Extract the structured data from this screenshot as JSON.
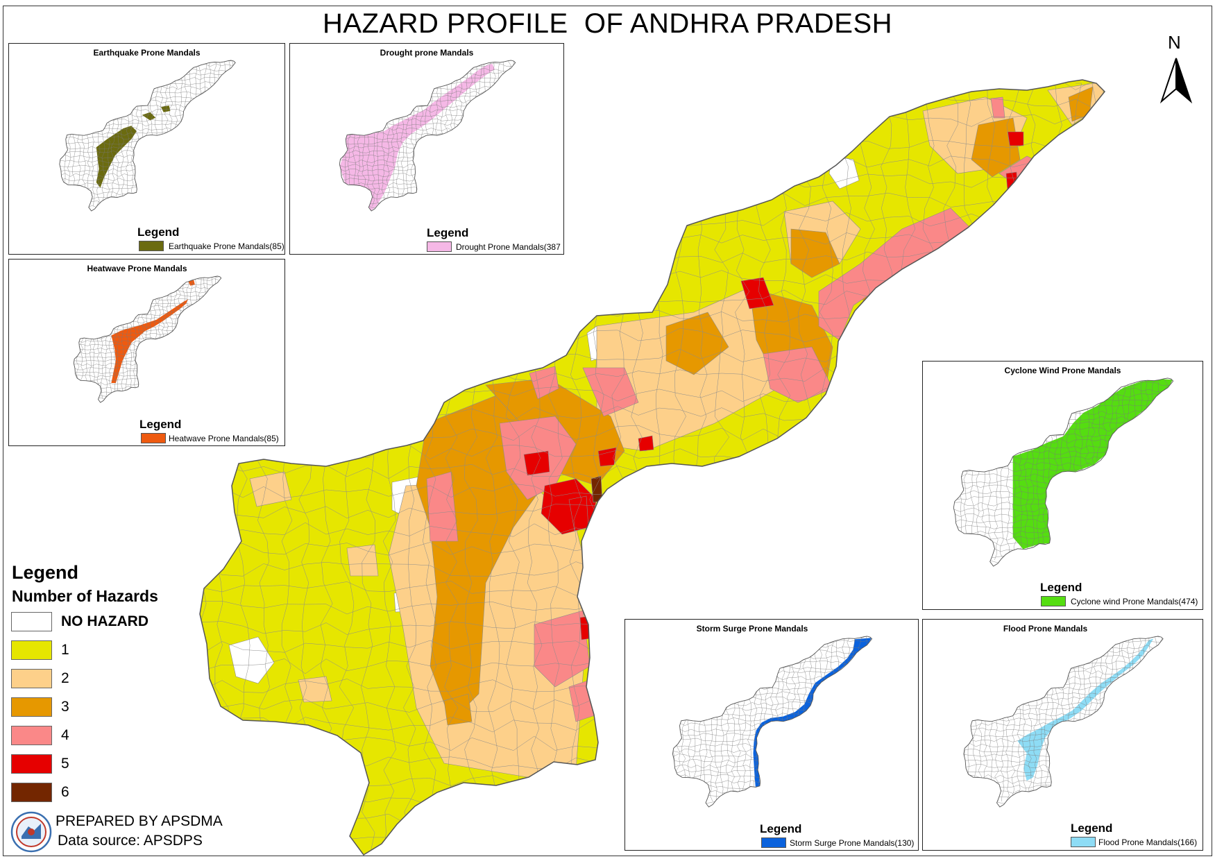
{
  "title": "HAZARD PROFILE  OF ANDHRA PRADESH",
  "north_label": "N",
  "colors": {
    "no_hazard": "#ffffff",
    "h1": "#e6e600",
    "h2": "#fdd08a",
    "h3": "#e69800",
    "h4": "#fa8888",
    "h5": "#e60000",
    "h6": "#732600",
    "boundary": "#8c8c8c",
    "earthquake": "#6b6b10",
    "drought": "#f5b8e6",
    "heatwave": "#ee5a10",
    "cyclone": "#55dd11",
    "storm_surge": "#0a62dd",
    "flood": "#8edcf5"
  },
  "legend": {
    "title": "Legend",
    "subtitle": "Number of Hazards",
    "items": [
      {
        "label": "NO HAZARD",
        "color": "#ffffff",
        "bold": true
      },
      {
        "label": "1",
        "color": "#e6e600"
      },
      {
        "label": "2",
        "color": "#fdd08a"
      },
      {
        "label": "3",
        "color": "#e69800"
      },
      {
        "label": "4",
        "color": "#fa8888"
      },
      {
        "label": "5",
        "color": "#e60000"
      },
      {
        "label": "6",
        "color": "#732600"
      }
    ]
  },
  "insets": [
    {
      "key": "earthquake",
      "title": "Earthquake Prone Mandals",
      "legend_title": "Legend",
      "legend_label": "Earthquake Prone Mandals(85)",
      "color": "#6b6b10"
    },
    {
      "key": "drought",
      "title": "Drought prone Mandals",
      "legend_title": "Legend",
      "legend_label": "Drought Prone Mandals(387",
      "color": "#f5b8e6"
    },
    {
      "key": "heatwave",
      "title": "Heatwave Prone Mandals",
      "legend_title": "Legend",
      "legend_label": "Heatwave Prone Mandals(85)",
      "color": "#ee5a10"
    },
    {
      "key": "cyclone",
      "title": "Cyclone Wind Prone Mandals",
      "legend_title": "Legend",
      "legend_label": "Cyclone wind Prone Mandals(474)",
      "color": "#55dd11"
    },
    {
      "key": "storm_surge",
      "title": "Storm Surge Prone Mandals",
      "legend_title": "Legend",
      "legend_label": "Storm Surge Prone Mandals(130)",
      "color": "#0a62dd"
    },
    {
      "key": "flood",
      "title": "Flood Prone Mandals",
      "legend_title": "Legend",
      "legend_label": "Flood Prone Mandals(166)",
      "color": "#8edcf5"
    }
  ],
  "footer": {
    "prepared_by": "PREPARED BY APSDMA",
    "data_source": "Data source: APSDPS"
  }
}
